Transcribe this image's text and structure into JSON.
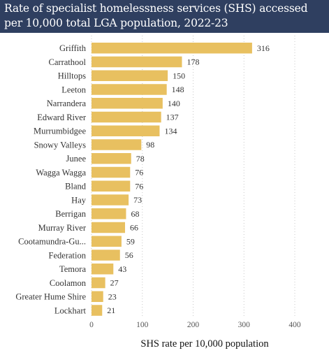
{
  "chart_data": {
    "type": "bar",
    "orientation": "horizontal",
    "title": "Rate of specialist homelessness services (SHS) accessed per 10,000 total LGA population, 2022-23",
    "title_lines": [
      "Rate of specialist homelessness services (SHS) accessed",
      "per 10,000 total LGA population, 2022-23"
    ],
    "xlabel": "SHS rate per 10,000 population",
    "ylabel": "",
    "xlim": [
      0,
      400
    ],
    "xticks": [
      0,
      100,
      200,
      300,
      400
    ],
    "grid": "vertical, dotted",
    "categories": [
      "Griffith",
      "Carrathool",
      "Hilltops",
      "Leeton",
      "Narrandera",
      "Edward River",
      "Murrumbidgee",
      "Snowy Valleys",
      "Junee",
      "Wagga Wagga",
      "Bland",
      "Hay",
      "Berrigan",
      "Murray River",
      "Cootamundra-Gu...",
      "Federation",
      "Temora",
      "Coolamon",
      "Greater Hume Shire",
      "Lockhart"
    ],
    "values": [
      316,
      178,
      150,
      148,
      140,
      137,
      134,
      98,
      78,
      76,
      76,
      73,
      68,
      66,
      59,
      56,
      43,
      27,
      23,
      21
    ],
    "colors": {
      "bar": "#e8c060",
      "title_background": "#2f3f60",
      "title_text": "#ffffff"
    }
  }
}
